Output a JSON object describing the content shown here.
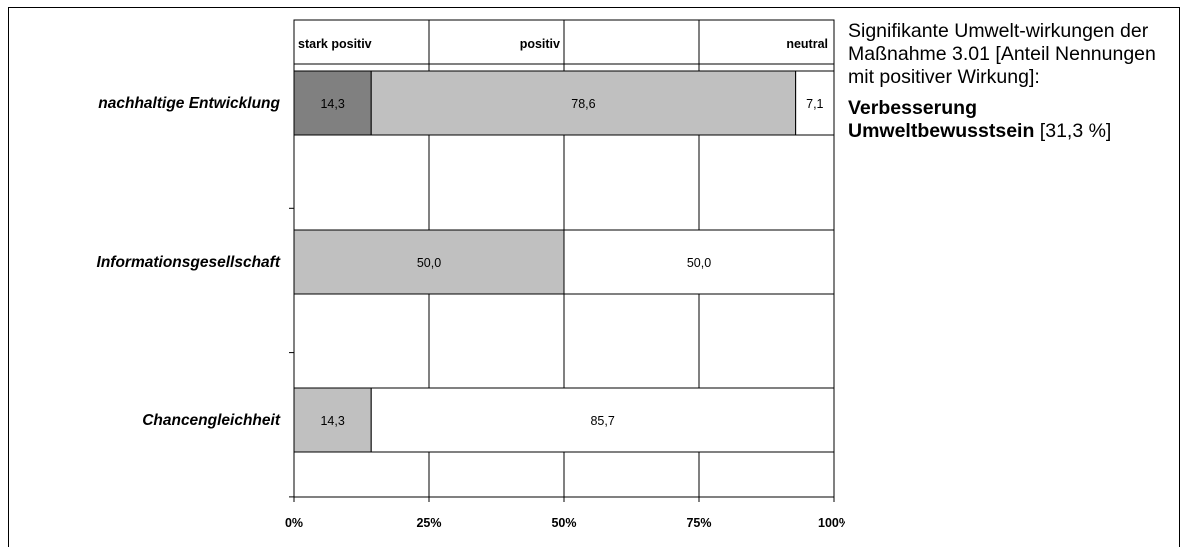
{
  "chart_data": {
    "type": "bar",
    "orientation": "horizontal",
    "stacked": true,
    "categories": [
      "nachhaltige Entwicklung",
      "Informationsgesellschaft",
      "Chancengleichheit"
    ],
    "series": [
      {
        "name": "stark positiv",
        "color": "#808080",
        "values": [
          14.3,
          0,
          0
        ],
        "labels": [
          "14,3",
          "",
          ""
        ]
      },
      {
        "name": "positiv",
        "color": "#c0c0c0",
        "values": [
          78.6,
          50.0,
          14.3
        ],
        "labels": [
          "78,6",
          "50,0",
          "14,3"
        ]
      },
      {
        "name": "neutral",
        "color": "#ffffff",
        "values": [
          7.1,
          50.0,
          85.7
        ],
        "labels": [
          "7,1",
          "50,0",
          "85,7"
        ]
      }
    ],
    "xlim": [
      0,
      100
    ],
    "x_ticks": [
      0,
      25,
      50,
      75,
      100
    ],
    "x_tick_labels": [
      "0%",
      "25%",
      "50%",
      "75%",
      "100%"
    ],
    "header_legend": [
      "stark positiv",
      "positiv",
      "neutral"
    ],
    "grid": true
  },
  "note": {
    "intro": "Signifikante Umwelt-wirkungen der Maßnahme 3.01 [Anteil Nennungen mit positiver Wirkung]:",
    "highlight": "Verbesserung Umweltbewusstsein",
    "highlight_value": " [31,3 %]"
  }
}
